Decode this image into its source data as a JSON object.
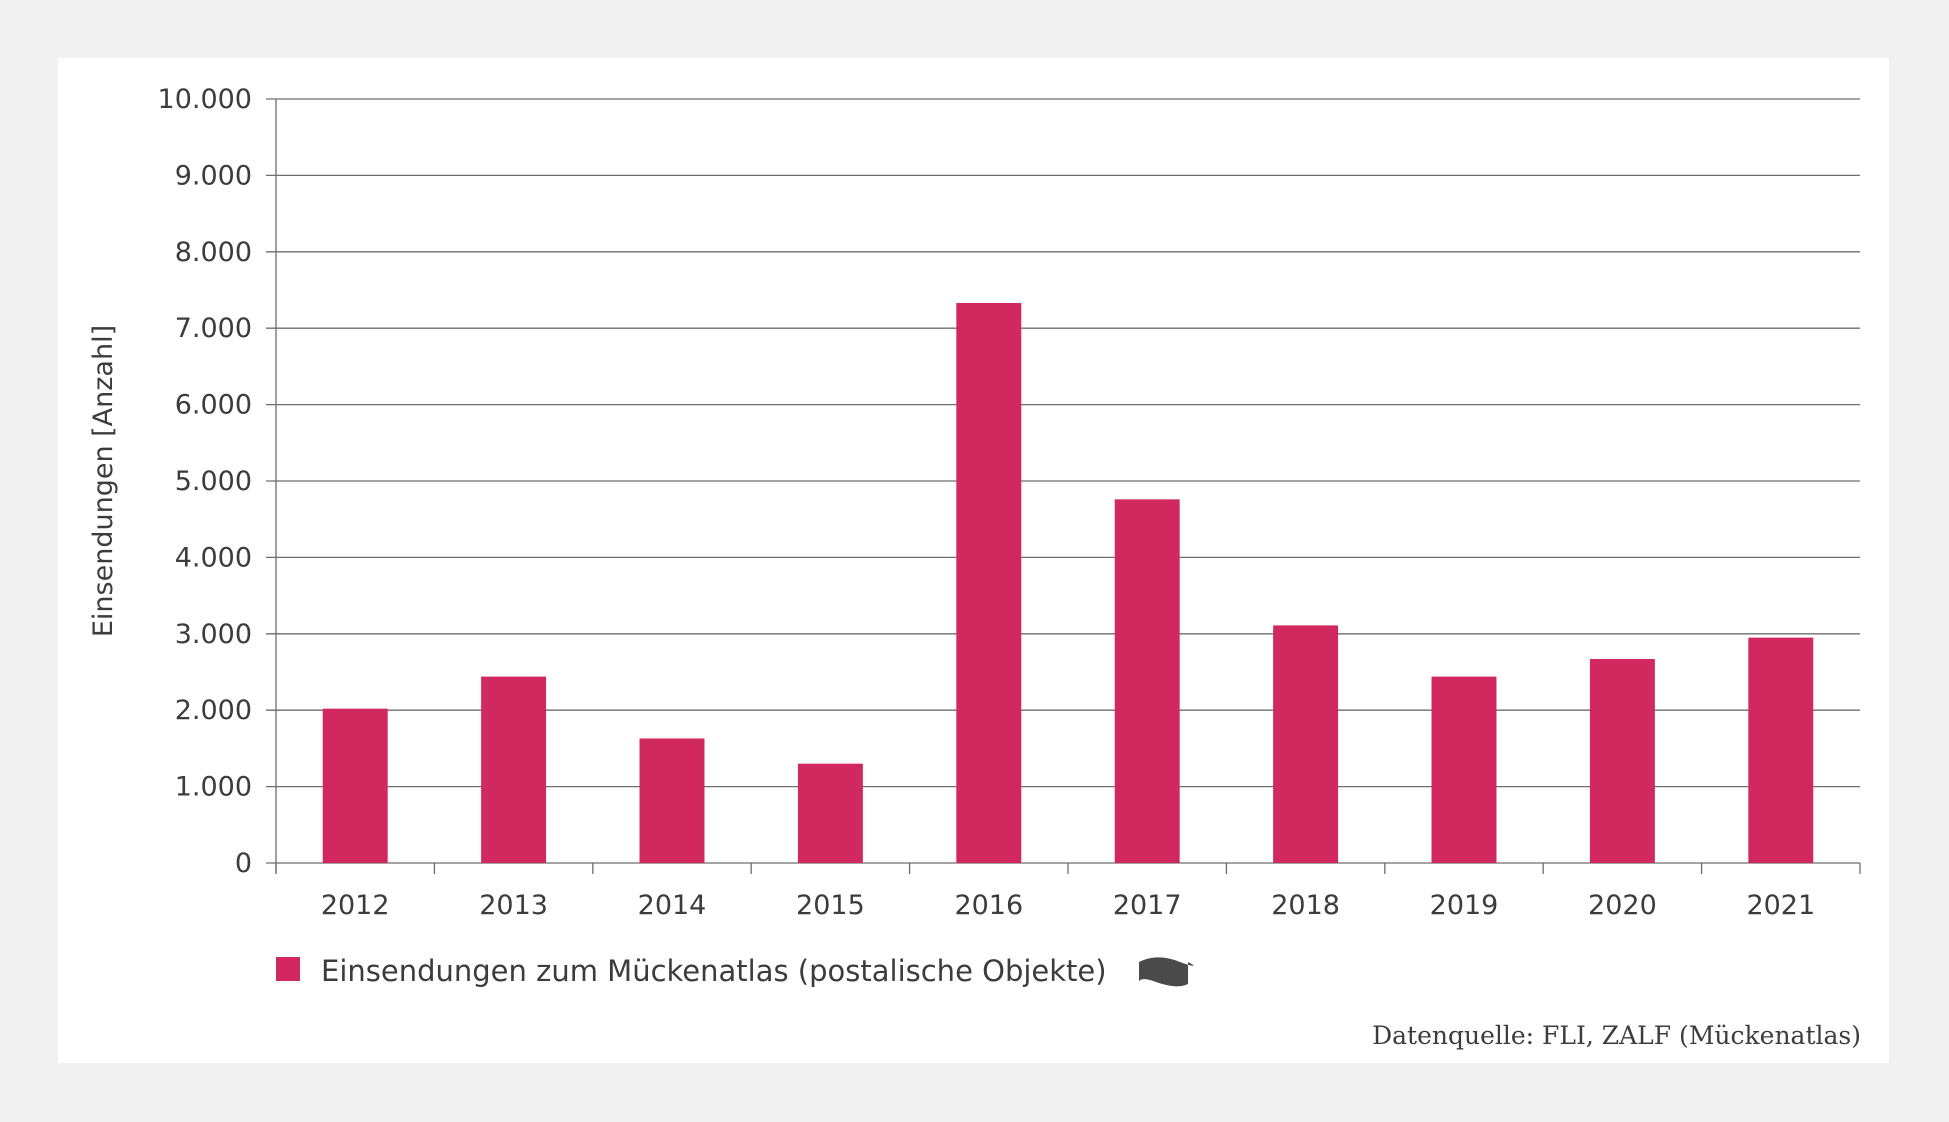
{
  "chart_data": {
    "type": "bar",
    "categories": [
      "2012",
      "2013",
      "2014",
      "2015",
      "2016",
      "2017",
      "2018",
      "2019",
      "2020",
      "2021"
    ],
    "series": [
      {
        "name": "Einsendungen zum Mückenatlas (postalische Objekte)",
        "values": [
          2020,
          2440,
          1630,
          1300,
          7330,
          4760,
          3110,
          2440,
          2670,
          2950
        ],
        "color": "#d0285f"
      }
    ],
    "ylabel": "Einsendungen [Anzahl]",
    "xlabel": "",
    "ylim": [
      0,
      10000
    ],
    "yticks": [
      0,
      1000,
      2000,
      3000,
      4000,
      5000,
      6000,
      7000,
      8000,
      9000,
      10000
    ],
    "ytick_labels": [
      "0",
      "1.000",
      "2.000",
      "3.000",
      "4.000",
      "5.000",
      "6.000",
      "7.000",
      "8.000",
      "9.000",
      "10.000"
    ],
    "grid": true,
    "legend_placement": "bottom-left",
    "legend_icon": "wave-icon",
    "source": "Datenquelle: FLI, ZALF (Mückenatlas)"
  }
}
